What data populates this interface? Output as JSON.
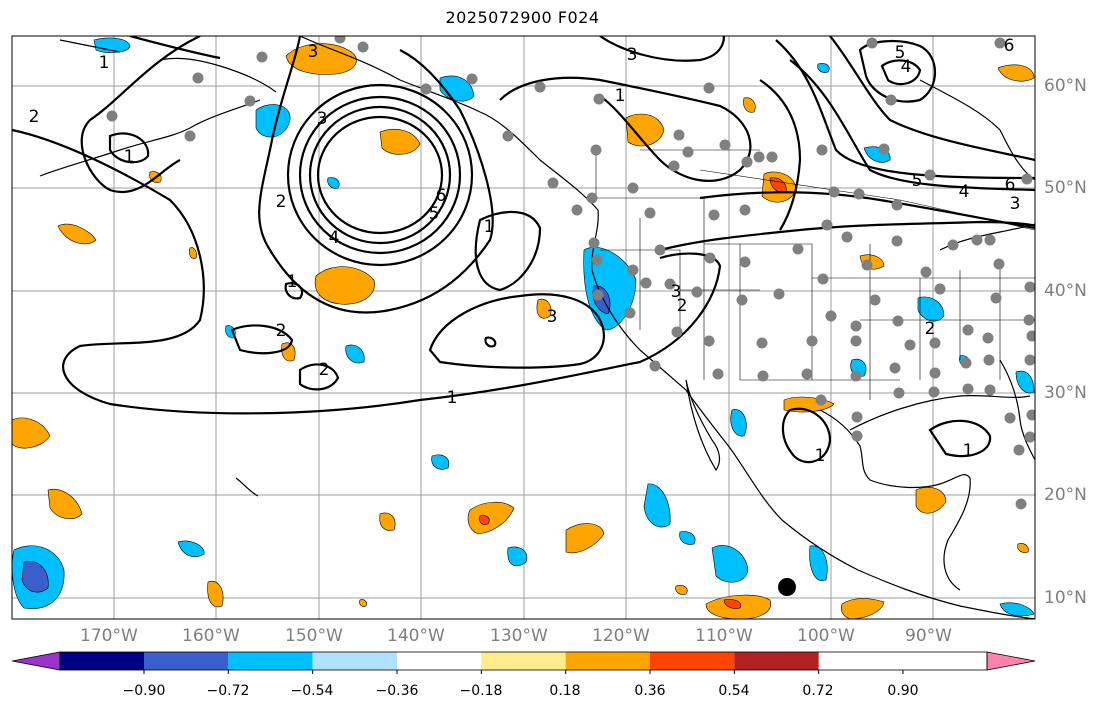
{
  "title": "2025072900 F024",
  "lon_labels": [
    "170°W",
    "160°W",
    "150°W",
    "140°W",
    "130°W",
    "120°W",
    "110°W",
    "100°W",
    "90°W"
  ],
  "lat_labels": [
    "60°N",
    "50°N",
    "40°N",
    "30°N",
    "20°N",
    "10°N"
  ],
  "colorbar": {
    "labels": [
      "−0.90",
      "−0.72",
      "−0.54",
      "−0.36",
      "−0.18",
      "0.18",
      "0.36",
      "0.54",
      "0.72",
      "0.90"
    ],
    "colors": [
      "#9933cc",
      "#000080",
      "#3a5fcd",
      "#00bfff",
      "#b0e2ff",
      "#ffffff",
      "#ffec8b",
      "#ffa500",
      "#ff4500",
      "#b22222",
      "#ff82ab"
    ]
  },
  "contour_labels": [
    "1",
    "3",
    "3",
    "1",
    "2",
    "3",
    "6",
    "5",
    "4",
    "2",
    "1",
    "6",
    "5",
    "4",
    "6",
    "5",
    "4",
    "3",
    "1",
    "2",
    "1",
    "3",
    "1",
    "2",
    "2",
    "3",
    "2",
    "2",
    "1",
    "1",
    "1"
  ],
  "marker": "black-dot"
}
